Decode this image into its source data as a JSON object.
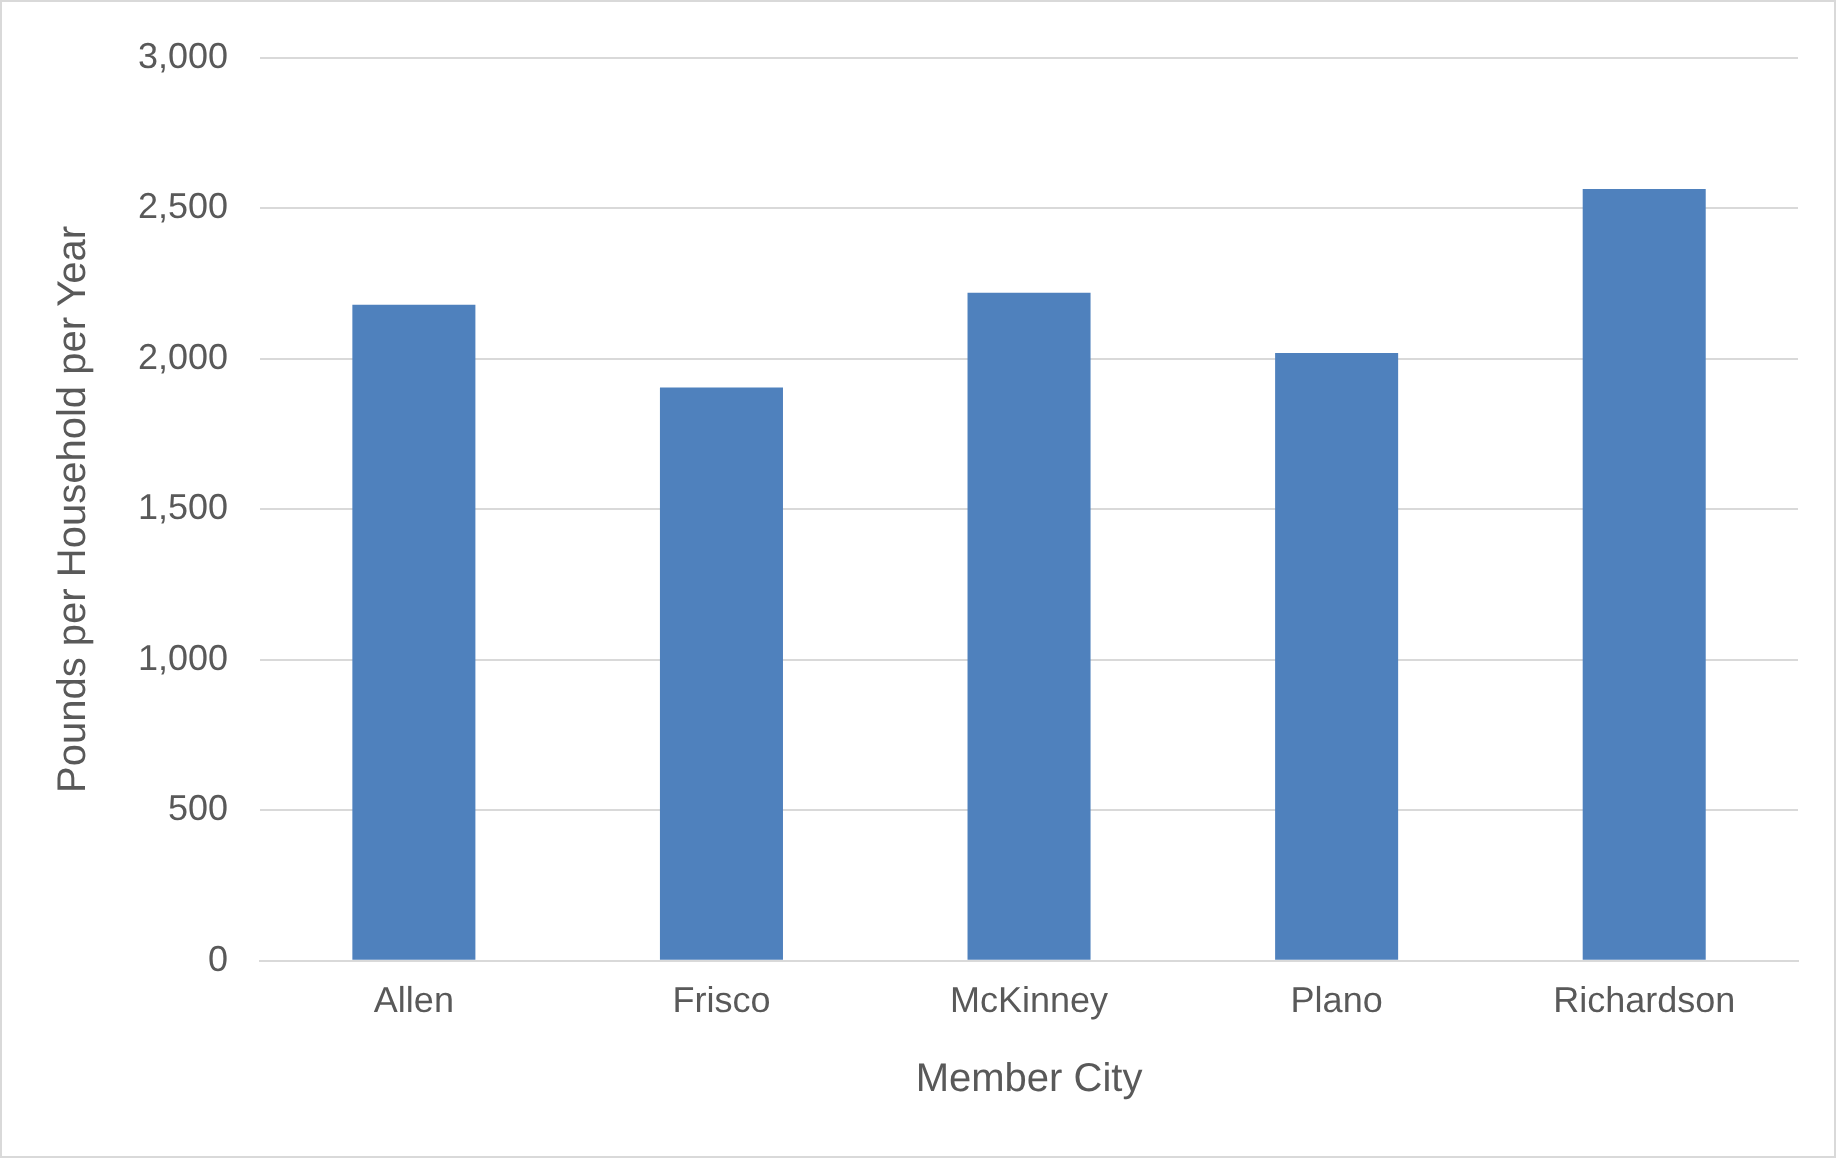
{
  "chart_data": {
    "type": "bar",
    "xlabel": "Member City",
    "ylabel": "Pounds per Household per Year",
    "categories": [
      "Allen",
      "Frisco",
      "McKinney",
      "Plano",
      "Richardson"
    ],
    "values": [
      2180,
      1905,
      2220,
      2020,
      2565
    ],
    "color": "#4f81bd",
    "ylim": [
      0,
      3000
    ],
    "yticks": [
      {
        "value": 0,
        "label": "0"
      },
      {
        "value": 500,
        "label": "500"
      },
      {
        "value": 1000,
        "label": "1,000"
      },
      {
        "value": 1500,
        "label": "1,500"
      },
      {
        "value": 2000,
        "label": "2,000"
      },
      {
        "value": 2500,
        "label": "2,500"
      },
      {
        "value": 3000,
        "label": "3,000"
      }
    ],
    "grid": "y"
  }
}
